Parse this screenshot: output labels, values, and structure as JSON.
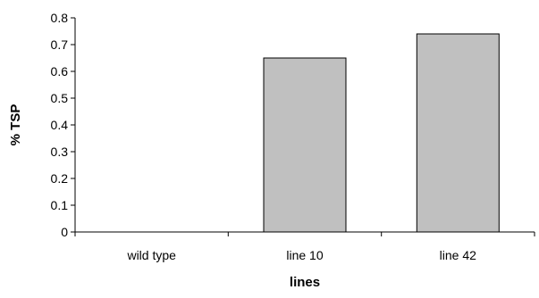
{
  "chart_data": {
    "type": "bar",
    "title": "",
    "xlabel": "lines",
    "ylabel": "% TSP",
    "categories": [
      "wild type",
      "line 10",
      "line 42"
    ],
    "values": [
      0,
      0.65,
      0.74
    ],
    "ylim": [
      0,
      0.8
    ],
    "yticks": [
      "0",
      "0.1",
      "0.2",
      "0.3",
      "0.4",
      "0.5",
      "0.6",
      "0.7",
      "0.8"
    ],
    "grid": false,
    "legend": "none",
    "colors": {
      "bar_fill": "#c0c0c0",
      "bar_stroke": "#000000",
      "axis": "#000000",
      "background": "#ffffff"
    }
  }
}
